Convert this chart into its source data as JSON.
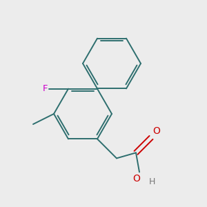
{
  "background_color": "#ececec",
  "bond_color": "#2d6e6e",
  "atom_colors": {
    "F": "#cc00cc",
    "O": "#cc0000",
    "H": "#777777",
    "C": "#2d6e6e"
  },
  "figsize": [
    3.0,
    3.0
  ],
  "dpi": 100
}
